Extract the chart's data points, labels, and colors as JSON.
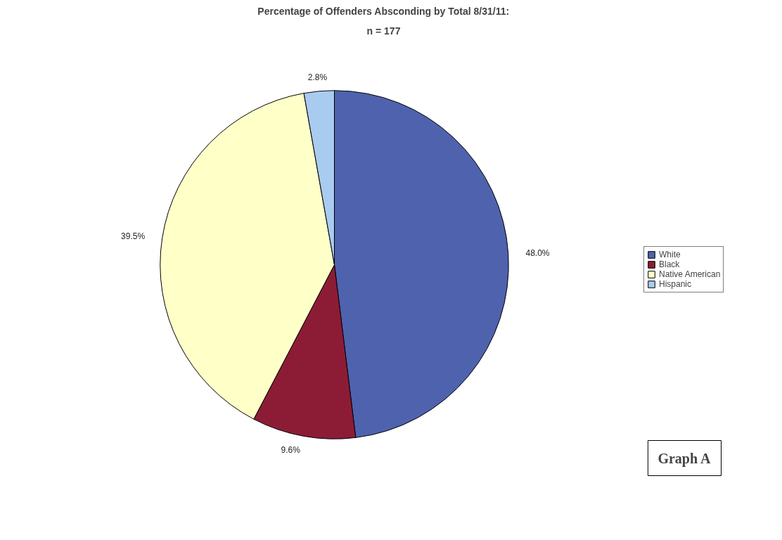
{
  "chart_data": {
    "type": "pie",
    "title": "Percentage of Offenders Absconding by Total 8/31/11:",
    "subtitle": "n = 177",
    "categories": [
      "White",
      "Black",
      "Native American",
      "Hispanic"
    ],
    "values": [
      48.0,
      9.6,
      39.5,
      2.8
    ],
    "colors": [
      "#4f62ad",
      "#8c1c35",
      "#ffffc8",
      "#a8cbef"
    ],
    "value_labels": [
      "48.0%",
      "9.6%",
      "39.5%",
      "2.8%"
    ],
    "legend": "right",
    "annotations": [
      "Graph A"
    ]
  }
}
